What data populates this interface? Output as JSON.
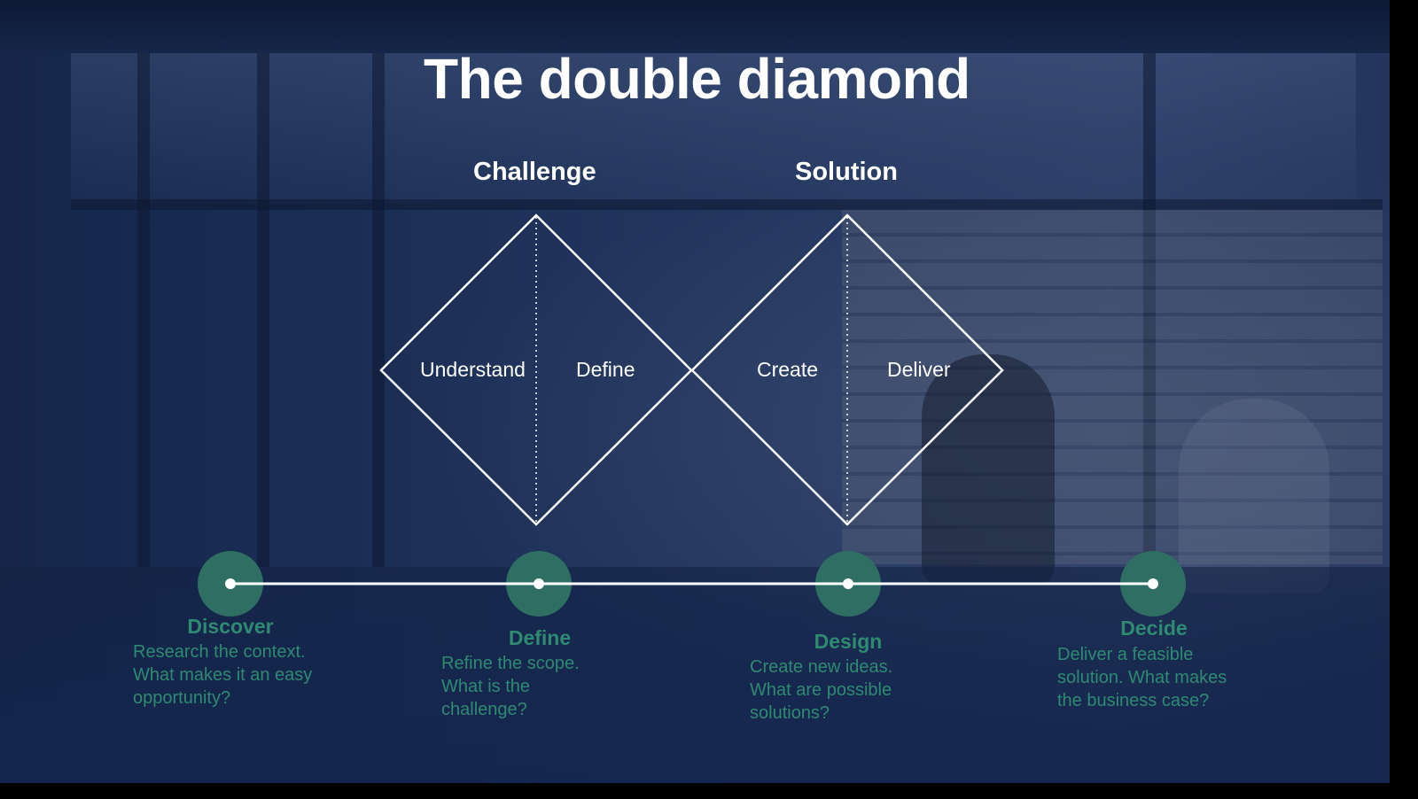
{
  "slide": {
    "title": "The double diamond"
  },
  "groups": [
    {
      "label": "Challenge"
    },
    {
      "label": "Solution"
    }
  ],
  "diamond_labels": [
    "Understand",
    "Define",
    "Create",
    "Deliver"
  ],
  "stages": [
    {
      "title": "Discover",
      "description": "Research the context. What makes it an easy opportunity?"
    },
    {
      "title": "Define",
      "description": "Refine the scope. What is the challenge?"
    },
    {
      "title": "Design",
      "description": "Create new ideas. What are possible solutions?"
    },
    {
      "title": "Decide",
      "description": "Deliver a feasible solution. What makes the business case?"
    }
  ],
  "colors": {
    "accent": "#2f6f63",
    "stage_text": "#2f8a72",
    "line": "#ffffff",
    "background": "#1b2f57"
  }
}
